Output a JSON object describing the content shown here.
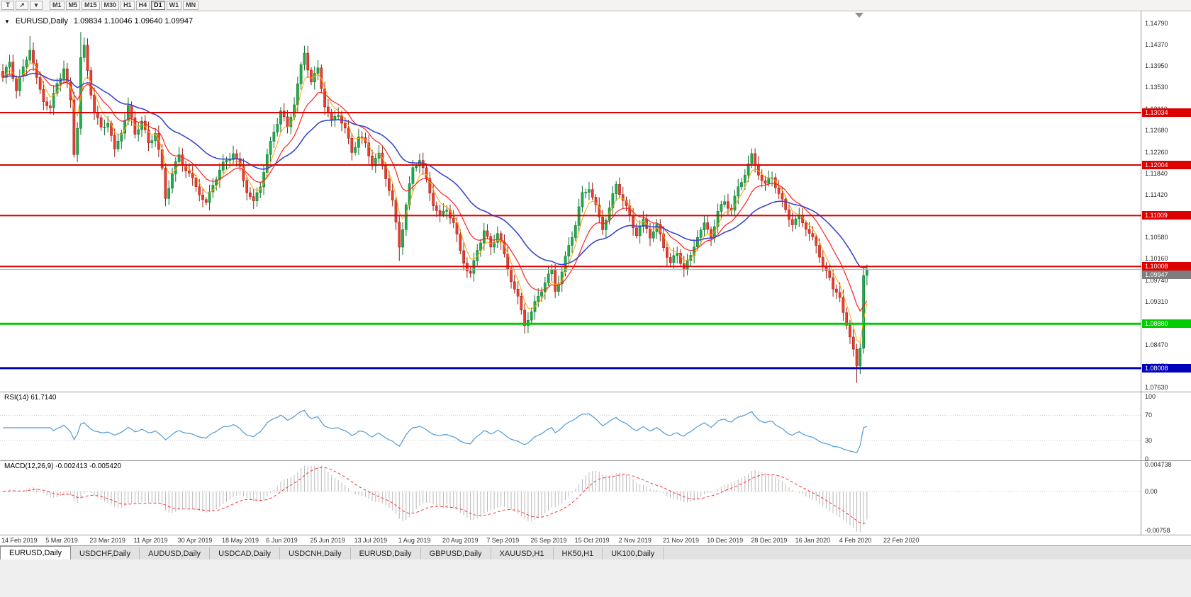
{
  "toolbar": {
    "tools": [
      {
        "label": "T",
        "name": "templates-button"
      },
      {
        "label": "↗",
        "name": "crosshair-tool-button"
      },
      {
        "label": "▾",
        "name": "tools-dropdown-arrow"
      }
    ],
    "timeframes": [
      "M1",
      "M5",
      "M15",
      "M30",
      "H1",
      "H4",
      "D1",
      "W1",
      "MN"
    ],
    "active_timeframe": "D1"
  },
  "chart_header": {
    "dropdown_icon": "▼",
    "symbol_title": "EURUSD,Daily",
    "ohlc_text": "1.09834 1.10046 1.09640 1.09947"
  },
  "price_axis": {
    "ticks": [
      "1.14790",
      "1.14370",
      "1.13950",
      "1.13530",
      "1.13110",
      "1.12680",
      "1.12260",
      "1.11840",
      "1.11420",
      "1.11000",
      "1.10580",
      "1.10160",
      "1.09740",
      "1.09310",
      "1.08880",
      "1.08470",
      "1.08050",
      "1.07630"
    ]
  },
  "levels": [
    {
      "label": "1.13034",
      "price": 1.13034,
      "color": "#dd0000",
      "thickness": 2,
      "type": "resistance"
    },
    {
      "label": "1.12004",
      "price": 1.12004,
      "color": "#dd0000",
      "thickness": 2,
      "type": "resistance"
    },
    {
      "label": "1.11009",
      "price": 1.11009,
      "color": "#dd0000",
      "thickness": 2,
      "type": "resistance"
    },
    {
      "label": "1.10008",
      "price": 1.10008,
      "color": "#dd0000",
      "thickness": 2,
      "type": "resistance"
    },
    {
      "label": "1.08880",
      "price": 1.0888,
      "color": "#00cc00",
      "thickness": 3,
      "type": "support"
    },
    {
      "label": "1.08008",
      "price": 1.08008,
      "color": "#0000bb",
      "thickness": 3,
      "type": "support"
    }
  ],
  "bid": {
    "label": "1.09947",
    "price": 1.09947,
    "line_color": "#b0b0b0",
    "flag_color": "#7d7d7d"
  },
  "date_axis": [
    "14 Feb 2019",
    "5 Mar 2019",
    "23 Mar 2019",
    "11 Apr 2019",
    "30 Apr 2019",
    "18 May 2019",
    "6 Jun 2019",
    "25 Jun 2019",
    "13 Jul 2019",
    "1 Aug 2019",
    "20 Aug 2019",
    "7 Sep 2019",
    "26 Sep 2019",
    "15 Oct 2019",
    "2 Nov 2019",
    "21 Nov 2019",
    "10 Dec 2019",
    "28 Dec 2019",
    "16 Jan 2020",
    "4 Feb 2020",
    "22 Feb 2020"
  ],
  "rsi_panel": {
    "label": "RSI(14) 61.7140",
    "period": 14,
    "value": 61.714,
    "line_color": "#4f9bd6",
    "ticks": [
      {
        "v": 100,
        "label": "100"
      },
      {
        "v": 70,
        "label": "70"
      },
      {
        "v": 30,
        "label": "30"
      },
      {
        "v": 0,
        "label": "0"
      }
    ],
    "dotted_levels": [
      70,
      30
    ]
  },
  "macd_panel": {
    "label": "MACD(12,26,9) -0.002413 -0.005420",
    "fast": 12,
    "slow": 26,
    "signal": 9,
    "main_value": -0.002413,
    "signal_value": -0.00542,
    "hist_color": "#b8b8b8",
    "signal_color": "#ff3333",
    "range": [
      -0.00758,
      0.004738
    ],
    "ticks": [
      {
        "v": 0.004738,
        "label": "0.004738"
      },
      {
        "v": 0,
        "label": "0.00"
      },
      {
        "v": -0.00758,
        "label": "-0.00758"
      }
    ]
  },
  "tabs": [
    {
      "label": "EURUSD,Daily",
      "active": true
    },
    {
      "label": "USDCHF,Daily",
      "active": false
    },
    {
      "label": "AUDUSD,Daily",
      "active": false
    },
    {
      "label": "USDCAD,Daily",
      "active": false
    },
    {
      "label": "USDCNH,Daily",
      "active": false
    },
    {
      "label": "EURUSD,Daily",
      "active": false
    },
    {
      "label": "GBPUSD,Daily",
      "active": false
    },
    {
      "label": "XAUUSD,H1",
      "active": false
    },
    {
      "label": "HK50,H1",
      "active": false
    },
    {
      "label": "UK100,Daily",
      "active": false
    }
  ],
  "chart_data": {
    "type": "candlestick",
    "symbol": "EURUSD",
    "timeframe": "Daily",
    "current_ohlc": {
      "open": 1.09834,
      "high": 1.10046,
      "low": 1.0964,
      "close": 1.09947
    },
    "x_range": [
      "14 Feb 2019",
      "22 Feb 2020"
    ],
    "y_range": [
      1.0763,
      1.1479
    ],
    "num_candles": 256,
    "rsi_value": 61.714,
    "macd_value": -0.002413,
    "macd_signal_value": -0.00542,
    "support_resistance": [
      1.13034,
      1.12004,
      1.11009,
      1.10008,
      1.0888,
      1.08008
    ],
    "up_color": "#1db04a",
    "up_stroke": "#0c6b2c",
    "down_color": "#f03b2e",
    "down_stroke": "#931b12",
    "moving_averages": [
      {
        "period": 5,
        "color": "#ffa500",
        "width": 1
      },
      {
        "period": 13,
        "color": "#ff2222",
        "width": 1.2
      },
      {
        "period": 34,
        "color": "#3b48cc",
        "width": 1.6
      }
    ],
    "wick_boosts": [
      [
        8,
        "h",
        0.0015
      ],
      [
        23,
        "h",
        0.0042
      ],
      [
        117,
        "l",
        0.0022
      ],
      [
        154,
        "l",
        0.0003
      ],
      [
        247,
        "h",
        0.0008
      ],
      [
        252,
        "l",
        0.0026
      ]
    ],
    "close_anchors": [
      [
        0,
        1.137
      ],
      [
        2,
        1.14
      ],
      [
        4,
        1.1345
      ],
      [
        6,
        1.139
      ],
      [
        8,
        1.1435
      ],
      [
        10,
        1.137
      ],
      [
        12,
        1.133
      ],
      [
        14,
        1.1305
      ],
      [
        16,
        1.136
      ],
      [
        18,
        1.139
      ],
      [
        20,
        1.133
      ],
      [
        21,
        1.123
      ],
      [
        22,
        1.128
      ],
      [
        23,
        1.141
      ],
      [
        24,
        1.143
      ],
      [
        25,
        1.1385
      ],
      [
        26,
        1.134
      ],
      [
        27,
        1.13
      ],
      [
        29,
        1.127
      ],
      [
        31,
        1.129
      ],
      [
        33,
        1.123
      ],
      [
        35,
        1.127
      ],
      [
        37,
        1.131
      ],
      [
        39,
        1.126
      ],
      [
        41,
        1.1285
      ],
      [
        43,
        1.1245
      ],
      [
        45,
        1.127
      ],
      [
        47,
        1.119
      ],
      [
        48,
        1.1135
      ],
      [
        50,
        1.118
      ],
      [
        52,
        1.1215
      ],
      [
        55,
        1.1185
      ],
      [
        58,
        1.115
      ],
      [
        60,
        1.112
      ],
      [
        62,
        1.116
      ],
      [
        65,
        1.12
      ],
      [
        68,
        1.123
      ],
      [
        70,
        1.1195
      ],
      [
        72,
        1.115
      ],
      [
        74,
        1.112
      ],
      [
        76,
        1.116
      ],
      [
        78,
        1.122
      ],
      [
        80,
        1.127
      ],
      [
        82,
        1.131
      ],
      [
        84,
        1.127
      ],
      [
        86,
        1.132
      ],
      [
        88,
        1.139
      ],
      [
        89,
        1.142
      ],
      [
        91,
        1.137
      ],
      [
        93,
        1.139
      ],
      [
        95,
        1.132
      ],
      [
        97,
        1.128
      ],
      [
        99,
        1.13
      ],
      [
        101,
        1.127
      ],
      [
        103,
        1.123
      ],
      [
        105,
        1.126
      ],
      [
        107,
        1.124
      ],
      [
        109,
        1.12
      ],
      [
        111,
        1.1215
      ],
      [
        113,
        1.118
      ],
      [
        115,
        1.113
      ],
      [
        117,
        1.1045
      ],
      [
        118,
        1.108
      ],
      [
        119,
        1.112
      ],
      [
        121,
        1.119
      ],
      [
        123,
        1.121
      ],
      [
        125,
        1.117
      ],
      [
        127,
        1.113
      ],
      [
        129,
        1.11
      ],
      [
        131,
        1.1115
      ],
      [
        133,
        1.108
      ],
      [
        135,
        1.103
      ],
      [
        137,
        1.0995
      ],
      [
        138,
        1.0985
      ],
      [
        140,
        1.104
      ],
      [
        142,
        1.107
      ],
      [
        144,
        1.1035
      ],
      [
        146,
        1.1065
      ],
      [
        148,
        1.102
      ],
      [
        150,
        1.098
      ],
      [
        152,
        1.094
      ],
      [
        154,
        1.089
      ],
      [
        156,
        1.0905
      ],
      [
        158,
        1.094
      ],
      [
        160,
        1.097
      ],
      [
        162,
        1.0995
      ],
      [
        163,
        1.096
      ],
      [
        165,
        1.099
      ],
      [
        167,
        1.104
      ],
      [
        169,
        1.108
      ],
      [
        171,
        1.114
      ],
      [
        173,
        1.116
      ],
      [
        175,
        1.112
      ],
      [
        177,
        1.108
      ],
      [
        179,
        1.111
      ],
      [
        181,
        1.116
      ],
      [
        183,
        1.113
      ],
      [
        185,
        1.11
      ],
      [
        187,
        1.107
      ],
      [
        189,
        1.109
      ],
      [
        191,
        1.106
      ],
      [
        193,
        1.1075
      ],
      [
        195,
        1.104
      ],
      [
        197,
        1.101
      ],
      [
        199,
        1.103
      ],
      [
        201,
        1.1
      ],
      [
        203,
        1.1015
      ],
      [
        205,
        1.106
      ],
      [
        207,
        1.108
      ],
      [
        209,
        1.1065
      ],
      [
        211,
        1.111
      ],
      [
        213,
        1.113
      ],
      [
        215,
        1.111
      ],
      [
        217,
        1.115
      ],
      [
        219,
        1.1185
      ],
      [
        221,
        1.122
      ],
      [
        223,
        1.119
      ],
      [
        225,
        1.116
      ],
      [
        227,
        1.1175
      ],
      [
        229,
        1.114
      ],
      [
        231,
        1.111
      ],
      [
        233,
        1.109
      ],
      [
        235,
        1.11
      ],
      [
        237,
        1.108
      ],
      [
        239,
        1.105
      ],
      [
        241,
        1.102
      ],
      [
        243,
        1.099
      ],
      [
        245,
        1.096
      ],
      [
        247,
        1.094
      ],
      [
        248,
        1.091
      ],
      [
        249,
        1.0885
      ],
      [
        250,
        1.0862
      ],
      [
        251,
        1.0838
      ],
      [
        252,
        1.0805
      ],
      [
        253,
        1.084
      ],
      [
        254,
        1.0983
      ],
      [
        255,
        1.09947
      ]
    ]
  },
  "colors": {
    "panel_divider": "#9a9a9a",
    "axis_text": "#2b2b2b",
    "toolbar_bg": "#f4f3f1",
    "tab_bg": "#e2e2e2",
    "active_tab_bg": "#ffffff",
    "chart_bg": "#ffffff"
  }
}
